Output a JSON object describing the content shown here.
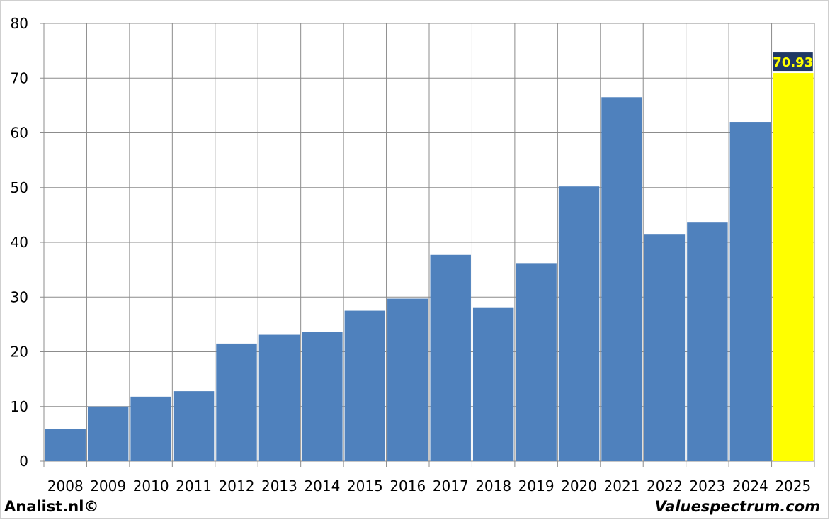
{
  "chart_data": {
    "type": "bar",
    "title": "",
    "xlabel": "",
    "ylabel": "",
    "categories": [
      "2008",
      "2009",
      "2010",
      "2011",
      "2012",
      "2013",
      "2014",
      "2015",
      "2016",
      "2017",
      "2018",
      "2019",
      "2020",
      "2021",
      "2022",
      "2023",
      "2024",
      "2025"
    ],
    "values": [
      5.9,
      10.0,
      11.8,
      12.8,
      21.5,
      23.1,
      23.6,
      27.5,
      29.7,
      37.7,
      28.0,
      36.2,
      50.2,
      66.5,
      41.4,
      43.6,
      62.0,
      70.93
    ],
    "ylim": [
      0,
      80
    ],
    "yticks": [
      0,
      10,
      20,
      30,
      40,
      50,
      60,
      70,
      80
    ],
    "grid": true,
    "bar_color": "#4f81bd",
    "highlight": {
      "index": 17,
      "color": "#ffff00",
      "label": "70.93",
      "label_bg": "#1f3864",
      "label_color": "#ffff00"
    }
  },
  "footer": {
    "left": "Analist.nl©",
    "right": "Valuespectrum.com"
  }
}
